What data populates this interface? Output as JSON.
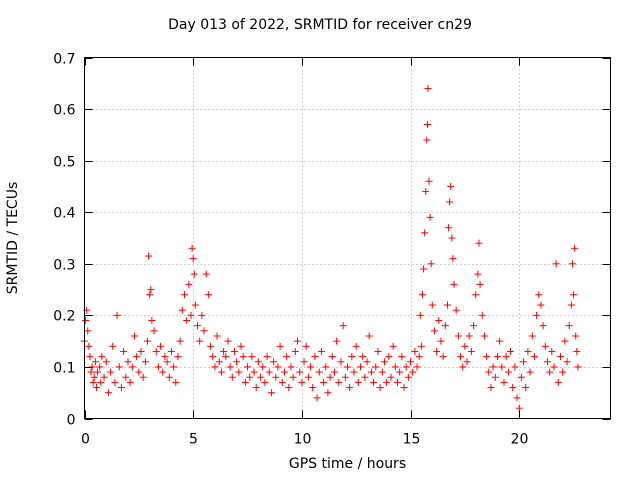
{
  "chart_data": {
    "type": "scatter",
    "title": "Day 013 of 2022, SRMTID for receiver cn29",
    "xlabel": "GPS time / hours",
    "ylabel": "SRMTID / TECUs",
    "xlim": [
      0,
      24.2
    ],
    "ylim": [
      0,
      0.7
    ],
    "x_ticks": [
      0,
      5,
      10,
      15,
      20
    ],
    "y_ticks": [
      0,
      0.1,
      0.2,
      0.3,
      0.4,
      0.5,
      0.6,
      0.7
    ],
    "x_tick_labels": [
      "0",
      "5",
      "10",
      "15",
      "20"
    ],
    "y_tick_labels": [
      "0",
      "0.1",
      "0.2",
      "0.3",
      "0.4",
      "0.5",
      "0.6",
      "0.7"
    ],
    "grid": true,
    "marker": "+",
    "color": "#ff0000",
    "series": [
      {
        "name": "SRMTID",
        "points": [
          [
            0.0,
            0.15
          ],
          [
            0.05,
            0.19
          ],
          [
            0.1,
            0.21
          ],
          [
            0.15,
            0.17
          ],
          [
            0.2,
            0.14
          ],
          [
            0.25,
            0.12
          ],
          [
            0.3,
            0.09
          ],
          [
            0.35,
            0.1
          ],
          [
            0.4,
            0.07
          ],
          [
            0.45,
            0.08
          ],
          [
            0.5,
            0.11
          ],
          [
            0.55,
            0.06
          ],
          [
            0.6,
            0.09
          ],
          [
            0.7,
            0.1
          ],
          [
            0.75,
            0.07
          ],
          [
            0.8,
            0.12
          ],
          [
            0.9,
            0.08
          ],
          [
            1.0,
            0.11
          ],
          [
            1.1,
            0.05
          ],
          [
            1.2,
            0.09
          ],
          [
            1.3,
            0.14
          ],
          [
            1.4,
            0.07
          ],
          [
            1.5,
            0.2
          ],
          [
            1.6,
            0.1
          ],
          [
            1.7,
            0.06
          ],
          [
            1.8,
            0.13
          ],
          [
            1.9,
            0.08
          ],
          [
            2.0,
            0.11
          ],
          [
            2.1,
            0.07
          ],
          [
            2.2,
            0.1
          ],
          [
            2.3,
            0.16
          ],
          [
            2.4,
            0.12
          ],
          [
            2.5,
            0.09
          ],
          [
            2.6,
            0.13
          ],
          [
            2.7,
            0.08
          ],
          [
            2.8,
            0.11
          ],
          [
            2.9,
            0.15
          ],
          [
            2.95,
            0.315
          ],
          [
            3.0,
            0.24
          ],
          [
            3.05,
            0.25
          ],
          [
            3.1,
            0.19
          ],
          [
            3.2,
            0.17
          ],
          [
            3.3,
            0.13
          ],
          [
            3.4,
            0.1
          ],
          [
            3.5,
            0.14
          ],
          [
            3.6,
            0.09
          ],
          [
            3.7,
            0.12
          ],
          [
            3.8,
            0.11
          ],
          [
            3.9,
            0.08
          ],
          [
            4.0,
            0.13
          ],
          [
            4.1,
            0.1
          ],
          [
            4.2,
            0.07
          ],
          [
            4.3,
            0.12
          ],
          [
            4.4,
            0.15
          ],
          [
            4.5,
            0.21
          ],
          [
            4.6,
            0.24
          ],
          [
            4.7,
            0.19
          ],
          [
            4.8,
            0.26
          ],
          [
            4.9,
            0.2
          ],
          [
            4.95,
            0.33
          ],
          [
            5.0,
            0.31
          ],
          [
            5.05,
            0.28
          ],
          [
            5.1,
            0.22
          ],
          [
            5.2,
            0.18
          ],
          [
            5.3,
            0.15
          ],
          [
            5.4,
            0.2
          ],
          [
            5.5,
            0.17
          ],
          [
            5.6,
            0.28
          ],
          [
            5.7,
            0.24
          ],
          [
            5.8,
            0.14
          ],
          [
            5.9,
            0.12
          ],
          [
            6.0,
            0.1
          ],
          [
            6.1,
            0.16
          ],
          [
            6.2,
            0.11
          ],
          [
            6.3,
            0.09
          ],
          [
            6.4,
            0.13
          ],
          [
            6.5,
            0.12
          ],
          [
            6.6,
            0.15
          ],
          [
            6.7,
            0.1
          ],
          [
            6.8,
            0.08
          ],
          [
            6.9,
            0.13
          ],
          [
            7.0,
            0.11
          ],
          [
            7.1,
            0.09
          ],
          [
            7.2,
            0.14
          ],
          [
            7.3,
            0.12
          ],
          [
            7.4,
            0.07
          ],
          [
            7.5,
            0.1
          ],
          [
            7.6,
            0.08
          ],
          [
            7.7,
            0.12
          ],
          [
            7.8,
            0.09
          ],
          [
            7.9,
            0.06
          ],
          [
            8.0,
            0.11
          ],
          [
            8.1,
            0.08
          ],
          [
            8.2,
            0.1
          ],
          [
            8.3,
            0.07
          ],
          [
            8.4,
            0.12
          ],
          [
            8.5,
            0.09
          ],
          [
            8.6,
            0.05
          ],
          [
            8.7,
            0.11
          ],
          [
            8.8,
            0.08
          ],
          [
            8.9,
            0.1
          ],
          [
            9.0,
            0.14
          ],
          [
            9.1,
            0.07
          ],
          [
            9.2,
            0.09
          ],
          [
            9.3,
            0.12
          ],
          [
            9.4,
            0.06
          ],
          [
            9.5,
            0.1
          ],
          [
            9.6,
            0.08
          ],
          [
            9.7,
            0.13
          ],
          [
            9.8,
            0.15
          ],
          [
            9.9,
            0.09
          ],
          [
            10.0,
            0.07
          ],
          [
            10.1,
            0.11
          ],
          [
            10.2,
            0.14
          ],
          [
            10.3,
            0.08
          ],
          [
            10.4,
            0.1
          ],
          [
            10.5,
            0.06
          ],
          [
            10.6,
            0.12
          ],
          [
            10.7,
            0.04
          ],
          [
            10.8,
            0.09
          ],
          [
            10.9,
            0.13
          ],
          [
            11.0,
            0.07
          ],
          [
            11.1,
            0.1
          ],
          [
            11.2,
            0.05
          ],
          [
            11.3,
            0.08
          ],
          [
            11.4,
            0.12
          ],
          [
            11.5,
            0.09
          ],
          [
            11.6,
            0.15
          ],
          [
            11.7,
            0.07
          ],
          [
            11.8,
            0.11
          ],
          [
            11.9,
            0.18
          ],
          [
            12.0,
            0.08
          ],
          [
            12.1,
            0.1
          ],
          [
            12.2,
            0.06
          ],
          [
            12.3,
            0.12
          ],
          [
            12.4,
            0.09
          ],
          [
            12.5,
            0.14
          ],
          [
            12.6,
            0.07
          ],
          [
            12.7,
            0.1
          ],
          [
            12.8,
            0.12
          ],
          [
            12.9,
            0.08
          ],
          [
            13.0,
            0.11
          ],
          [
            13.1,
            0.16
          ],
          [
            13.2,
            0.09
          ],
          [
            13.3,
            0.07
          ],
          [
            13.4,
            0.1
          ],
          [
            13.5,
            0.13
          ],
          [
            13.6,
            0.06
          ],
          [
            13.7,
            0.09
          ],
          [
            13.8,
            0.11
          ],
          [
            13.9,
            0.07
          ],
          [
            14.0,
            0.12
          ],
          [
            14.1,
            0.08
          ],
          [
            14.2,
            0.14
          ],
          [
            14.3,
            0.1
          ],
          [
            14.4,
            0.07
          ],
          [
            14.5,
            0.09
          ],
          [
            14.6,
            0.12
          ],
          [
            14.7,
            0.06
          ],
          [
            14.8,
            0.1
          ],
          [
            14.9,
            0.08
          ],
          [
            15.0,
            0.11
          ],
          [
            15.1,
            0.09
          ],
          [
            15.2,
            0.13
          ],
          [
            15.3,
            0.1
          ],
          [
            15.4,
            0.12
          ],
          [
            15.45,
            0.2
          ],
          [
            15.5,
            0.14
          ],
          [
            15.55,
            0.24
          ],
          [
            15.6,
            0.29
          ],
          [
            15.65,
            0.36
          ],
          [
            15.7,
            0.44
          ],
          [
            15.75,
            0.54
          ],
          [
            15.78,
            0.57
          ],
          [
            15.8,
            0.64
          ],
          [
            15.85,
            0.46
          ],
          [
            15.9,
            0.39
          ],
          [
            15.95,
            0.3
          ],
          [
            16.0,
            0.22
          ],
          [
            16.1,
            0.17
          ],
          [
            16.2,
            0.13
          ],
          [
            16.3,
            0.19
          ],
          [
            16.4,
            0.15
          ],
          [
            16.5,
            0.12
          ],
          [
            16.6,
            0.18
          ],
          [
            16.7,
            0.22
          ],
          [
            16.75,
            0.37
          ],
          [
            16.8,
            0.42
          ],
          [
            16.85,
            0.45
          ],
          [
            16.9,
            0.35
          ],
          [
            16.95,
            0.31
          ],
          [
            17.0,
            0.26
          ],
          [
            17.1,
            0.21
          ],
          [
            17.2,
            0.16
          ],
          [
            17.3,
            0.12
          ],
          [
            17.4,
            0.1
          ],
          [
            17.5,
            0.14
          ],
          [
            17.6,
            0.11
          ],
          [
            17.7,
            0.16
          ],
          [
            17.8,
            0.13
          ],
          [
            17.9,
            0.18
          ],
          [
            18.0,
            0.24
          ],
          [
            18.1,
            0.28
          ],
          [
            18.15,
            0.34
          ],
          [
            18.2,
            0.26
          ],
          [
            18.3,
            0.2
          ],
          [
            18.4,
            0.16
          ],
          [
            18.5,
            0.12
          ],
          [
            18.6,
            0.09
          ],
          [
            18.7,
            0.06
          ],
          [
            18.8,
            0.1
          ],
          [
            18.9,
            0.08
          ],
          [
            19.0,
            0.12
          ],
          [
            19.1,
            0.15
          ],
          [
            19.2,
            0.1
          ],
          [
            19.3,
            0.07
          ],
          [
            19.4,
            0.12
          ],
          [
            19.5,
            0.09
          ],
          [
            19.6,
            0.13
          ],
          [
            19.7,
            0.06
          ],
          [
            19.8,
            0.1
          ],
          [
            19.9,
            0.04
          ],
          [
            20.0,
            0.02
          ],
          [
            20.1,
            0.08
          ],
          [
            20.2,
            0.11
          ],
          [
            20.3,
            0.06
          ],
          [
            20.4,
            0.13
          ],
          [
            20.5,
            0.09
          ],
          [
            20.6,
            0.16
          ],
          [
            20.7,
            0.12
          ],
          [
            20.8,
            0.2
          ],
          [
            20.9,
            0.24
          ],
          [
            21.0,
            0.22
          ],
          [
            21.1,
            0.18
          ],
          [
            21.2,
            0.14
          ],
          [
            21.3,
            0.11
          ],
          [
            21.4,
            0.09
          ],
          [
            21.5,
            0.13
          ],
          [
            21.6,
            0.1
          ],
          [
            21.7,
            0.3
          ],
          [
            21.8,
            0.07
          ],
          [
            21.9,
            0.12
          ],
          [
            22.0,
            0.09
          ],
          [
            22.1,
            0.15
          ],
          [
            22.2,
            0.11
          ],
          [
            22.3,
            0.18
          ],
          [
            22.4,
            0.22
          ],
          [
            22.45,
            0.3
          ],
          [
            22.5,
            0.24
          ],
          [
            22.55,
            0.33
          ],
          [
            22.6,
            0.16
          ],
          [
            22.65,
            0.13
          ],
          [
            22.7,
            0.1
          ]
        ]
      }
    ]
  }
}
